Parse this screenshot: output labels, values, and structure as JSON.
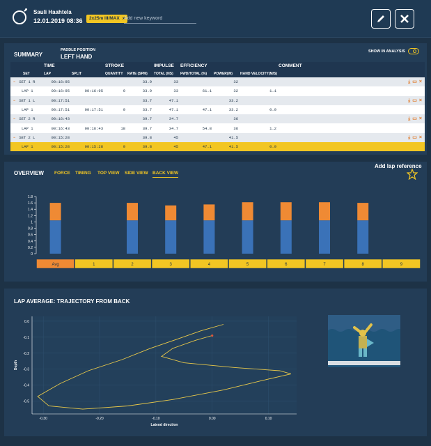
{
  "header": {
    "user_name": "Sauli Haahtela",
    "date_time": "12.01.2019   08:36",
    "tag": "2x25m III/MAX",
    "tag_close": "x",
    "keyword_placeholder": "Add new keyword"
  },
  "summary": {
    "title": "SUMMARY",
    "paddle_position_label": "PADDLE POSITION",
    "paddle_position_value": "LEFT HAND",
    "show_in_analysis": "SHOW IN ANALYSIS",
    "groups": {
      "time": "TIME",
      "stroke": "STROKE",
      "impulse": "IMPULSE",
      "efficiency": "EFFICIENCY",
      "comment": "COMMENT"
    },
    "columns": {
      "set": "SET",
      "lap": "LAP",
      "split": "SPLIT",
      "quantity": "QUANTITY",
      "rate": "RATE (SPM)",
      "total": "TOTAL (NS)",
      "fwd_total": "FWD/TOTAL (%)",
      "power": "POWER(W)",
      "hand_velocity": "HAND VELOCITY(M/S)"
    },
    "rows": [
      {
        "kind": "set",
        "toggle": "−",
        "label": "SET 1 R",
        "lap": "00:16:95",
        "split": "",
        "quantity": "",
        "rate": "33.9",
        "total": "33",
        "fwd": "",
        "power": "32",
        "hv": ""
      },
      {
        "kind": "lap",
        "toggle": "",
        "label": "LAP 1",
        "lap": "00:16:95",
        "split": "00:16:95",
        "quantity": "9",
        "rate": "33.9",
        "total": "33",
        "fwd": "61.1",
        "power": "32",
        "hv": "1.1"
      },
      {
        "kind": "set",
        "toggle": "−",
        "label": "SET 1 L",
        "lap": "00:17:51",
        "split": "",
        "quantity": "",
        "rate": "33.7",
        "total": "47.1",
        "fwd": "",
        "power": "33.2",
        "hv": ""
      },
      {
        "kind": "lap",
        "toggle": "",
        "label": "LAP 1",
        "lap": "00:17:51",
        "split": "00:17:51",
        "quantity": "9",
        "rate": "33.7",
        "total": "47.1",
        "fwd": "47.1",
        "power": "33.2",
        "hv": "0.9"
      },
      {
        "kind": "set",
        "toggle": "−",
        "label": "SET 2 R",
        "lap": "00:16:43",
        "split": "",
        "quantity": "",
        "rate": "39.7",
        "total": "34.7",
        "fwd": "",
        "power": "36",
        "hv": ""
      },
      {
        "kind": "lap",
        "toggle": "",
        "label": "LAP 1",
        "lap": "00:16:43",
        "split": "00:16:43",
        "quantity": "18",
        "rate": "39.7",
        "total": "34.7",
        "fwd": "54.8",
        "power": "36",
        "hv": "1.2"
      },
      {
        "kind": "set",
        "toggle": "−",
        "label": "SET 2 L",
        "lap": "00:15:28",
        "split": "",
        "quantity": "",
        "rate": "39.8",
        "total": "45",
        "fwd": "",
        "power": "41.5",
        "hv": ""
      },
      {
        "kind": "hl",
        "toggle": "",
        "label": "LAP 1",
        "lap": "00:15:28",
        "split": "00:15:28",
        "quantity": "9",
        "rate": "39.8",
        "total": "45",
        "fwd": "47.1",
        "power": "41.5",
        "hv": "0.9"
      }
    ],
    "row_icons": {
      "download": "⤓",
      "export": "▭",
      "delete": "×"
    }
  },
  "overview": {
    "title": "OVERVIEW",
    "tabs": [
      "FORCE",
      "TIMING",
      "TOP VIEW",
      "SIDE VIEW",
      "BACK VIEW"
    ],
    "active_tab": "BACK VIEW",
    "lap_reference": "Add lap reference",
    "colors": {
      "blue": "#3a72b8",
      "orange": "#ef8a34",
      "yellow": "#f2c623"
    }
  },
  "chart_data": [
    {
      "type": "bar",
      "categories": [
        "Avg",
        "1",
        "2",
        "3",
        "4",
        "5",
        "6",
        "7",
        "8",
        "9"
      ],
      "series": [
        {
          "values": [
            1.05,
            null,
            1.05,
            1.05,
            1.05,
            1.05,
            1.05,
            1.05,
            1.05,
            null
          ]
        },
        {
          "values": [
            0.55,
            null,
            0.55,
            0.47,
            0.5,
            0.57,
            0.57,
            0.57,
            0.55,
            null
          ]
        }
      ],
      "yticks": [
        "0",
        "0.2",
        "0.4",
        "0.6",
        "0.8",
        "1",
        "1.2",
        "1.4",
        "1.6",
        "1.8"
      ],
      "ylim": [
        0,
        1.8
      ],
      "stacked": true
    },
    {
      "type": "line",
      "title": "LAP AVERAGE: TRAJECTORY FROM BACK",
      "xlabel": "Lateral direction",
      "ylabel": "Depth",
      "xlim": [
        -0.32,
        0.15
      ],
      "ylim": [
        -0.58,
        0.03
      ],
      "xticks": [
        "-0.30",
        "-0.20",
        "-0.10",
        "0.00",
        "0.10"
      ],
      "yticks": [
        "0.0",
        "-0.1",
        "-0.2",
        "-0.3",
        "-0.4",
        "-0.5"
      ],
      "series": [
        {
          "x": [
            0.02,
            -0.02,
            -0.06,
            -0.11,
            -0.16,
            -0.22,
            -0.27,
            -0.31,
            -0.29,
            -0.23,
            -0.15,
            -0.07,
            0.02,
            0.09,
            0.14,
            0.12,
            0.04,
            -0.05,
            -0.09,
            -0.07,
            -0.03,
            0.0
          ],
          "y": [
            -0.02,
            -0.06,
            -0.11,
            -0.17,
            -0.24,
            -0.31,
            -0.39,
            -0.47,
            -0.53,
            -0.55,
            -0.53,
            -0.49,
            -0.43,
            -0.37,
            -0.33,
            -0.31,
            -0.29,
            -0.26,
            -0.22,
            -0.17,
            -0.12,
            -0.09
          ]
        }
      ]
    }
  ]
}
